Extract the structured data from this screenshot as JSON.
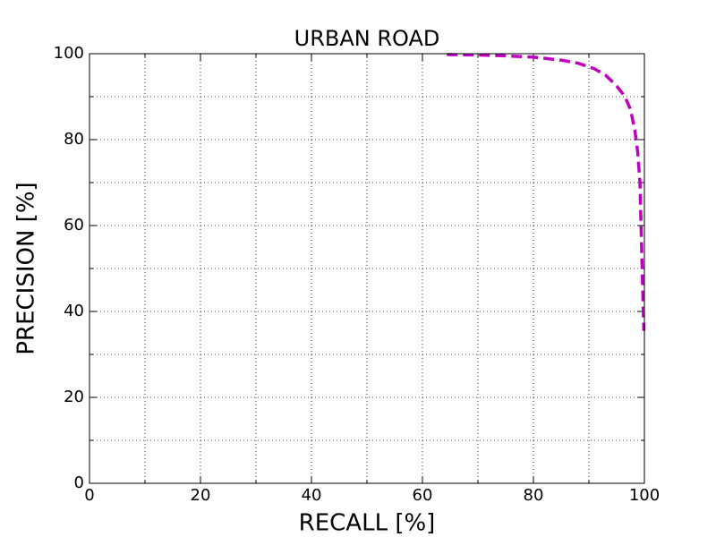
{
  "chart_data": {
    "type": "line",
    "title": "URBAN ROAD",
    "xlabel": "RECALL [%]",
    "ylabel": "PRECISION [%]",
    "x": [
      64.4,
      70,
      75,
      80,
      85,
      88,
      91,
      93,
      95,
      96.5,
      97.5,
      98.3,
      98.8,
      99.2,
      99.4,
      99.6,
      99.8,
      99.9
    ],
    "values": [
      99.8,
      99.7,
      99.5,
      99.2,
      98.5,
      97.8,
      96.5,
      95,
      92.5,
      90,
      87,
      82,
      77,
      70,
      60,
      50,
      40,
      35.5
    ],
    "color": "#bf00bf",
    "linestyle": "dashed",
    "xlim": [
      0,
      100
    ],
    "ylim": [
      0,
      100
    ],
    "xticks": [
      0,
      20,
      40,
      60,
      80,
      100
    ],
    "yticks": [
      0,
      20,
      40,
      60,
      80,
      100
    ],
    "xminorticks": [
      10,
      30,
      50,
      70,
      90
    ],
    "yminorticks": [
      10,
      30,
      50,
      70,
      90
    ],
    "grid": true
  }
}
